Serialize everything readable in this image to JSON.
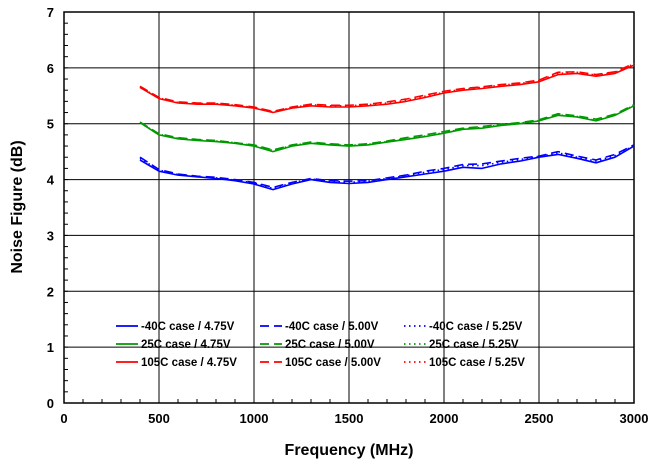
{
  "chart_data": {
    "type": "line",
    "title": "",
    "xlabel": "Frequency (MHz)",
    "ylabel": "Noise Figure (dB)",
    "xlim": [
      0,
      3000
    ],
    "ylim": [
      0,
      7
    ],
    "xticks": [
      0,
      500,
      1000,
      1500,
      2000,
      2500,
      3000
    ],
    "yticks": [
      0,
      1,
      2,
      3,
      4,
      5,
      6,
      7
    ],
    "grid": true,
    "legend_position": "lower-center",
    "x": [
      400,
      500,
      600,
      700,
      800,
      900,
      1000,
      1100,
      1200,
      1300,
      1400,
      1500,
      1600,
      1700,
      1800,
      1900,
      2000,
      2100,
      2200,
      2300,
      2400,
      2500,
      2600,
      2700,
      2800,
      2900,
      3000
    ],
    "series": [
      {
        "name": "-40C case / 4.75V",
        "color": "#0000ff",
        "dash": "solid",
        "values": [
          4.35,
          4.15,
          4.08,
          4.05,
          4.02,
          3.98,
          3.92,
          3.82,
          3.92,
          4.0,
          3.95,
          3.93,
          3.95,
          4.0,
          4.05,
          4.1,
          4.15,
          4.22,
          4.2,
          4.28,
          4.33,
          4.4,
          4.45,
          4.38,
          4.3,
          4.4,
          4.6
        ]
      },
      {
        "name": "-40C case / 5.00V",
        "color": "#0000ff",
        "dash": "dashed",
        "values": [
          4.4,
          4.18,
          4.1,
          4.06,
          4.04,
          4.0,
          3.95,
          3.86,
          3.95,
          4.02,
          3.98,
          3.97,
          3.98,
          4.03,
          4.08,
          4.15,
          4.2,
          4.27,
          4.28,
          4.33,
          4.38,
          4.42,
          4.5,
          4.42,
          4.35,
          4.45,
          4.62
        ]
      },
      {
        "name": "-40C case / 5.25V",
        "color": "#0000ff",
        "dash": "dotted",
        "values": [
          4.38,
          4.17,
          4.09,
          4.05,
          4.03,
          3.99,
          3.94,
          3.84,
          3.94,
          4.01,
          3.97,
          3.95,
          3.97,
          4.02,
          4.07,
          4.13,
          4.18,
          4.25,
          4.25,
          4.31,
          4.36,
          4.41,
          4.48,
          4.4,
          4.33,
          4.43,
          4.61
        ]
      },
      {
        "name": "25C case / 4.75V",
        "color": "#009900",
        "dash": "solid",
        "values": [
          5.02,
          4.8,
          4.73,
          4.7,
          4.68,
          4.65,
          4.6,
          4.5,
          4.6,
          4.65,
          4.62,
          4.6,
          4.62,
          4.67,
          4.72,
          4.77,
          4.83,
          4.9,
          4.92,
          4.97,
          5.0,
          5.05,
          5.15,
          5.12,
          5.05,
          5.15,
          5.32
        ]
      },
      {
        "name": "25C case / 5.00V",
        "color": "#009900",
        "dash": "dashed",
        "values": [
          5.03,
          4.82,
          4.75,
          4.72,
          4.7,
          4.66,
          4.62,
          4.53,
          4.62,
          4.67,
          4.64,
          4.62,
          4.64,
          4.69,
          4.75,
          4.8,
          4.86,
          4.92,
          4.95,
          4.99,
          5.02,
          5.07,
          5.18,
          5.14,
          5.08,
          5.17,
          5.34
        ]
      },
      {
        "name": "25C case / 5.25V",
        "color": "#009900",
        "dash": "dotted",
        "values": [
          5.02,
          4.81,
          4.74,
          4.71,
          4.69,
          4.66,
          4.61,
          4.52,
          4.61,
          4.66,
          4.63,
          4.61,
          4.63,
          4.68,
          4.73,
          4.78,
          4.84,
          4.91,
          4.93,
          4.98,
          5.01,
          5.06,
          5.16,
          5.13,
          5.06,
          5.16,
          5.33
        ]
      },
      {
        "name": "105C case / 4.75V",
        "color": "#ff0000",
        "dash": "solid",
        "values": [
          5.65,
          5.45,
          5.37,
          5.35,
          5.35,
          5.32,
          5.28,
          5.2,
          5.28,
          5.32,
          5.3,
          5.3,
          5.32,
          5.35,
          5.4,
          5.47,
          5.55,
          5.6,
          5.63,
          5.67,
          5.7,
          5.75,
          5.88,
          5.9,
          5.85,
          5.9,
          6.05
        ]
      },
      {
        "name": "105C case / 5.00V",
        "color": "#ff0000",
        "dash": "dashed",
        "values": [
          5.67,
          5.47,
          5.39,
          5.37,
          5.37,
          5.34,
          5.3,
          5.22,
          5.3,
          5.35,
          5.33,
          5.33,
          5.35,
          5.39,
          5.44,
          5.51,
          5.58,
          5.63,
          5.66,
          5.7,
          5.73,
          5.78,
          5.92,
          5.93,
          5.88,
          5.93,
          6.08
        ]
      },
      {
        "name": "105C case / 5.25V",
        "color": "#ff0000",
        "dash": "dotted",
        "values": [
          5.66,
          5.46,
          5.38,
          5.36,
          5.36,
          5.33,
          5.29,
          5.21,
          5.29,
          5.34,
          5.32,
          5.32,
          5.34,
          5.37,
          5.42,
          5.49,
          5.56,
          5.62,
          5.65,
          5.69,
          5.72,
          5.77,
          5.9,
          5.92,
          5.87,
          5.92,
          6.07
        ]
      }
    ]
  }
}
